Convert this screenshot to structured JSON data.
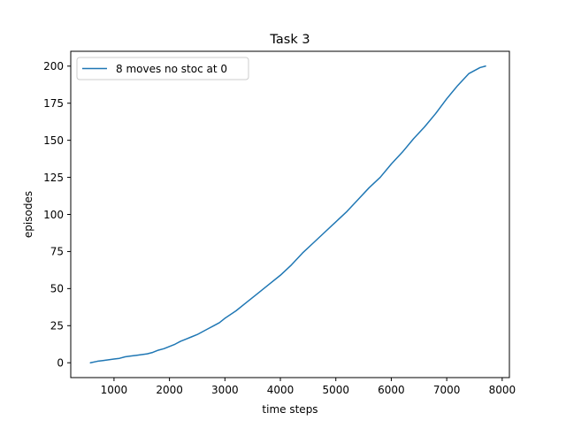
{
  "chart_data": {
    "type": "line",
    "title": "Task 3",
    "xlabel": "time steps",
    "ylabel": "episodes",
    "xlim": [
      220,
      8130
    ],
    "ylim": [
      -10,
      210
    ],
    "xticks": [
      1000,
      2000,
      3000,
      4000,
      5000,
      6000,
      7000,
      8000
    ],
    "yticks": [
      0,
      25,
      50,
      75,
      100,
      125,
      150,
      175,
      200
    ],
    "grid": false,
    "legend_position": "upper left",
    "series": [
      {
        "name": "8 moves no stoc at 0",
        "color": "#1f77b4",
        "x": [
          575,
          700,
          800,
          900,
          1000,
          1100,
          1200,
          1300,
          1400,
          1500,
          1600,
          1700,
          1800,
          1900,
          2000,
          2100,
          2200,
          2300,
          2400,
          2500,
          2600,
          2700,
          2800,
          2900,
          3000,
          3200,
          3400,
          3600,
          3800,
          4000,
          4200,
          4400,
          4600,
          4800,
          5000,
          5200,
          5400,
          5600,
          5800,
          6000,
          6200,
          6400,
          6600,
          6800,
          7000,
          7200,
          7400,
          7600,
          7700
        ],
        "y": [
          0,
          1,
          1.5,
          2,
          2.5,
          3,
          4,
          4.5,
          5,
          5.5,
          6,
          7,
          8.5,
          9.5,
          11,
          12.5,
          14.5,
          16,
          17.5,
          19,
          21,
          23,
          25,
          27,
          30,
          35,
          41,
          47,
          53,
          59,
          66,
          74,
          81,
          88,
          95,
          102,
          110,
          118,
          125,
          134,
          142,
          151,
          159,
          168,
          178,
          187,
          195,
          199,
          200
        ]
      }
    ]
  }
}
